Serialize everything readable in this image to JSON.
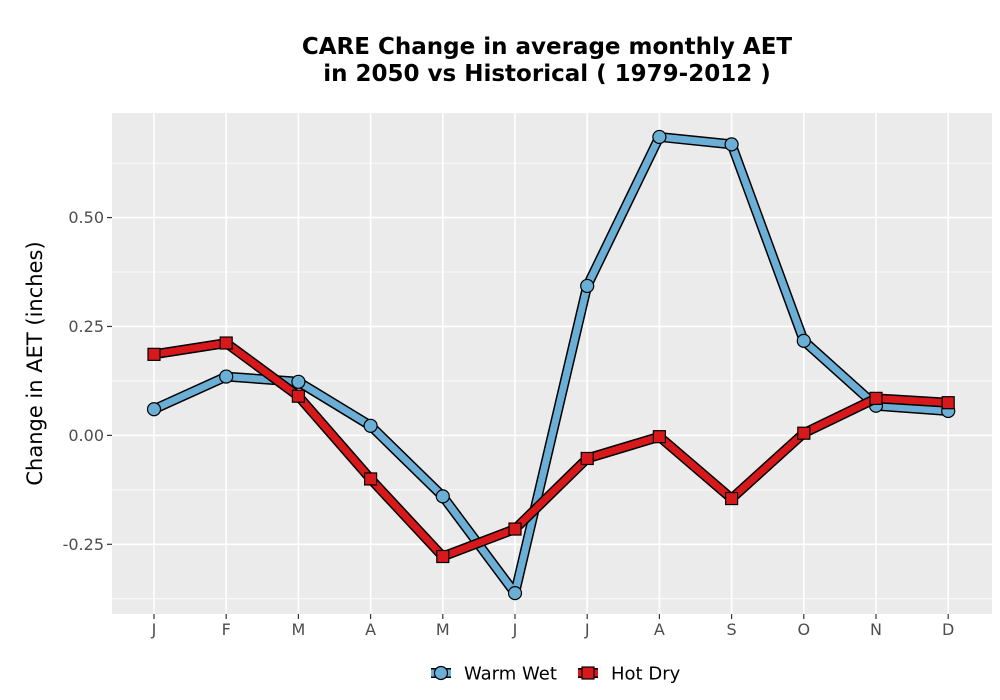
{
  "chart_data": {
    "type": "line",
    "title_lines": [
      "CARE  Change in average monthly AET",
      "in 2050 vs Historical ( 1979-2012 )"
    ],
    "xlabel": "",
    "ylabel": "Change in AET (inches)",
    "categories": [
      "J",
      "F",
      "M",
      "A",
      "M",
      "J",
      "J",
      "A",
      "S",
      "O",
      "N",
      "D"
    ],
    "ylim": [
      -0.41,
      0.74
    ],
    "yticks": [
      -0.25,
      0.0,
      0.25,
      0.5
    ],
    "ytick_labels": [
      "-0.25",
      "0.00",
      "0.25",
      "0.50"
    ],
    "grid": true,
    "legend_position": "bottom",
    "series": [
      {
        "name": "Warm Wet",
        "color": "#6baed6",
        "marker": "circle",
        "values": [
          0.06,
          0.135,
          0.123,
          0.022,
          -0.14,
          -0.362,
          0.343,
          0.685,
          0.668,
          0.217,
          0.068,
          0.056
        ]
      },
      {
        "name": "Hot Dry",
        "color": "#d7191c",
        "marker": "square",
        "values": [
          0.186,
          0.212,
          0.09,
          -0.1,
          -0.278,
          -0.215,
          -0.053,
          -0.003,
          -0.145,
          0.005,
          0.085,
          0.075
        ]
      }
    ]
  }
}
